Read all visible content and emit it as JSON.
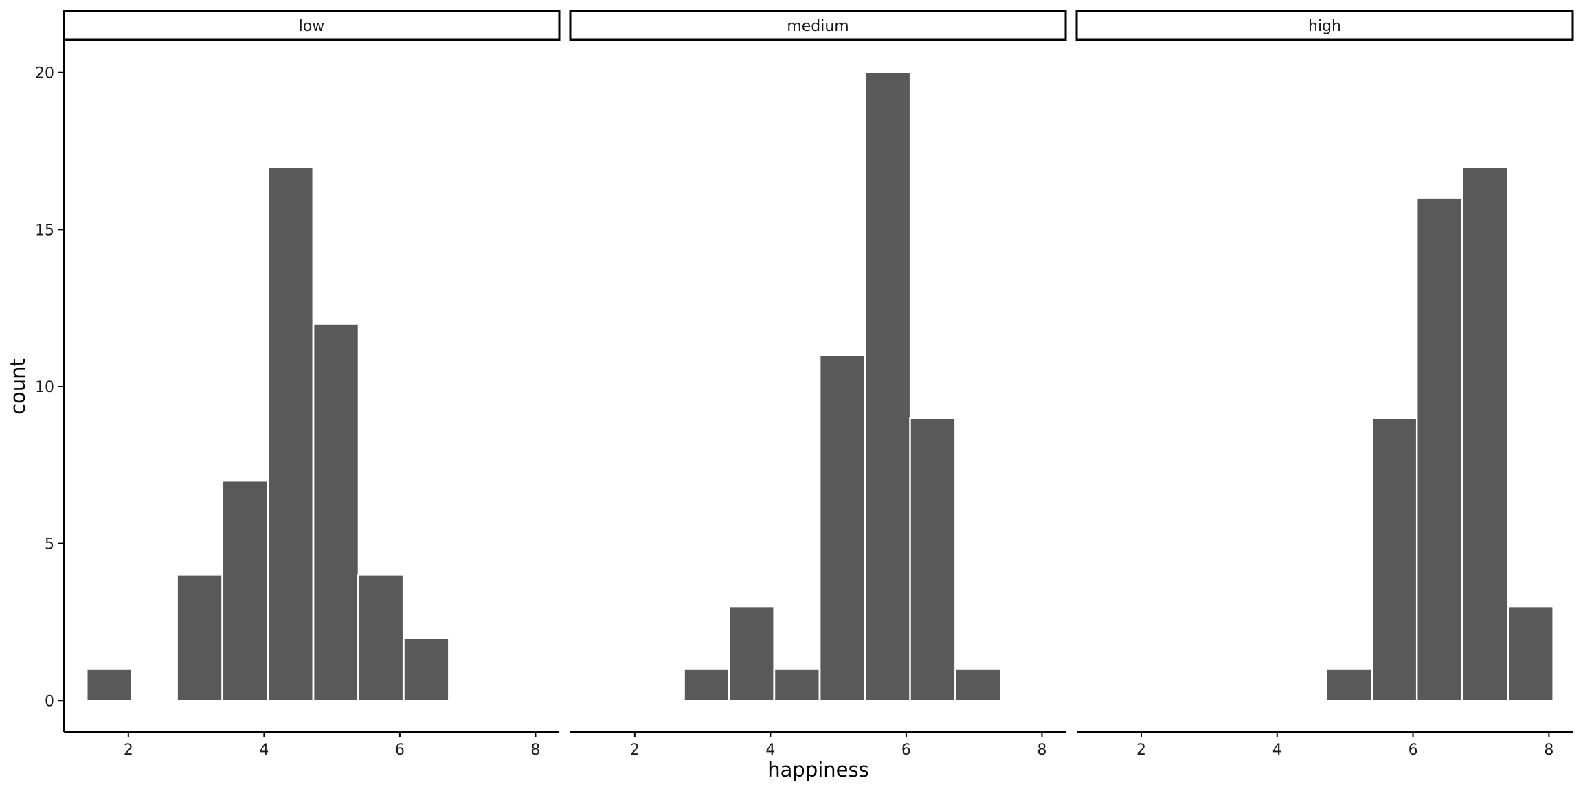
{
  "chart_data": {
    "type": "bar",
    "subtype": "faceted-histogram",
    "xlabel": "happiness",
    "ylabel": "count",
    "bin_width": 0.6667,
    "xlim": [
      1.05,
      8.35
    ],
    "ylim": [
      -1.0,
      21.0
    ],
    "x_ticks": [
      2,
      4,
      6,
      8
    ],
    "y_ticks": [
      0,
      5,
      10,
      15,
      20
    ],
    "bar_color": "#595959",
    "bar_edge_color": "#ffffff",
    "grid": false,
    "facets": [
      {
        "label": "low",
        "bins": [
          {
            "x": 1.72,
            "count": 1
          },
          {
            "x": 3.05,
            "count": 4
          },
          {
            "x": 3.72,
            "count": 7
          },
          {
            "x": 4.39,
            "count": 17
          },
          {
            "x": 5.06,
            "count": 12
          },
          {
            "x": 5.72,
            "count": 4
          },
          {
            "x": 6.39,
            "count": 2
          }
        ]
      },
      {
        "label": "medium",
        "bins": [
          {
            "x": 3.06,
            "count": 1
          },
          {
            "x": 3.72,
            "count": 3
          },
          {
            "x": 4.39,
            "count": 1
          },
          {
            "x": 5.06,
            "count": 11
          },
          {
            "x": 5.73,
            "count": 20
          },
          {
            "x": 6.39,
            "count": 9
          },
          {
            "x": 7.06,
            "count": 1
          }
        ]
      },
      {
        "label": "high",
        "bins": [
          {
            "x": 5.06,
            "count": 1
          },
          {
            "x": 5.73,
            "count": 9
          },
          {
            "x": 6.39,
            "count": 16
          },
          {
            "x": 7.06,
            "count": 17
          },
          {
            "x": 7.73,
            "count": 3
          }
        ]
      }
    ]
  }
}
